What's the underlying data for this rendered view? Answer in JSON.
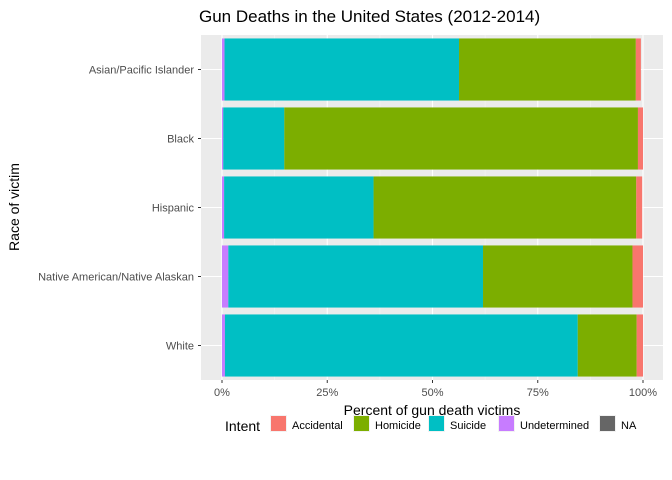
{
  "chart_data": {
    "type": "bar",
    "orientation": "horizontal",
    "stacked": "percent",
    "title": "Gun Deaths in the United States (2012-2014)",
    "xlabel": "Percent of gun death victims",
    "ylabel": "Race of victim",
    "xlim": [
      0,
      1
    ],
    "x_ticks": [
      0,
      0.25,
      0.5,
      0.75,
      1.0
    ],
    "x_tick_labels": [
      "0%",
      "25%",
      "50%",
      "75%",
      "100%"
    ],
    "categories": [
      "Asian/Pacific Islander",
      "Black",
      "Hispanic",
      "Native American/Native Alaskan",
      "White"
    ],
    "series": [
      {
        "name": "Undetermined",
        "color": "#C77CFF",
        "values": [
          0.006,
          0.003,
          0.005,
          0.015,
          0.007
        ]
      },
      {
        "name": "Suicide",
        "color": "#00BFC4",
        "values": [
          0.557,
          0.145,
          0.355,
          0.605,
          0.838
        ]
      },
      {
        "name": "Homicide",
        "color": "#7CAE00",
        "values": [
          0.42,
          0.84,
          0.624,
          0.355,
          0.14
        ]
      },
      {
        "name": "Accidental",
        "color": "#F8766D",
        "values": [
          0.012,
          0.012,
          0.014,
          0.025,
          0.015
        ]
      },
      {
        "name": "NA",
        "color": "#666666",
        "values": [
          0.0,
          0.0,
          0.0,
          0.0,
          0.0
        ]
      }
    ],
    "legend": {
      "title": "Intent",
      "position": "bottom",
      "entries": [
        {
          "label": "Accidental",
          "color": "#F8766D"
        },
        {
          "label": "Homicide",
          "color": "#7CAE00"
        },
        {
          "label": "Suicide",
          "color": "#00BFC4"
        },
        {
          "label": "Undetermined",
          "color": "#C77CFF"
        },
        {
          "label": "NA",
          "color": "#666666"
        }
      ]
    },
    "grid": true,
    "panel_background": "#EBEBEB"
  }
}
